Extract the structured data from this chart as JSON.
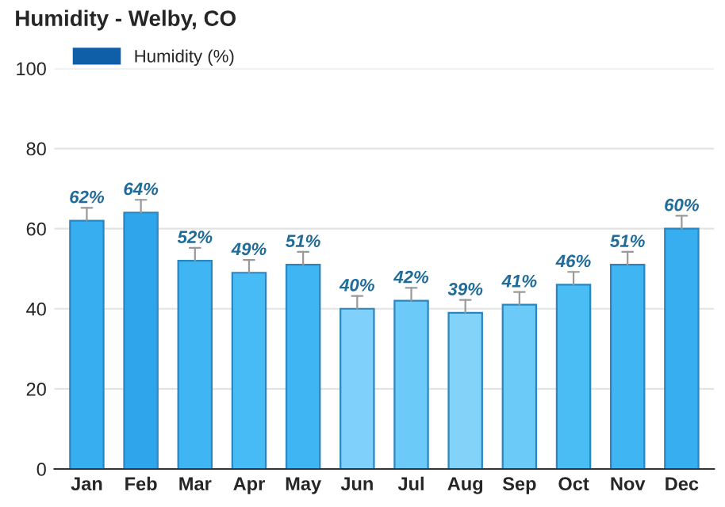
{
  "chart_data": {
    "type": "bar",
    "title": "Humidity - Welby, CO",
    "categories": [
      "Jan",
      "Feb",
      "Mar",
      "Apr",
      "May",
      "Jun",
      "Jul",
      "Aug",
      "Sep",
      "Oct",
      "Nov",
      "Dec"
    ],
    "series": [
      {
        "name": "Humidity (%)",
        "values": [
          62,
          64,
          52,
          49,
          51,
          40,
          42,
          39,
          41,
          46,
          51,
          60
        ],
        "colors": [
          "#36aef0",
          "#2fa6ec",
          "#3fb5f3",
          "#46bbf5",
          "#3fb5f3",
          "#7fd0fa",
          "#6ccaf8",
          "#82d2fa",
          "#6ccaf8",
          "#4bbdf5",
          "#3fb5f3",
          "#36aef0"
        ],
        "value_labels": [
          "62%",
          "64%",
          "52%",
          "49%",
          "51%",
          "40%",
          "42%",
          "39%",
          "41%",
          "46%",
          "51%",
          "60%"
        ],
        "color": "#0f5fa8"
      }
    ],
    "ylim": [
      0,
      100
    ],
    "yticks": [
      0,
      20,
      40,
      60,
      80,
      100
    ],
    "grid": "y",
    "legend": "top left"
  }
}
